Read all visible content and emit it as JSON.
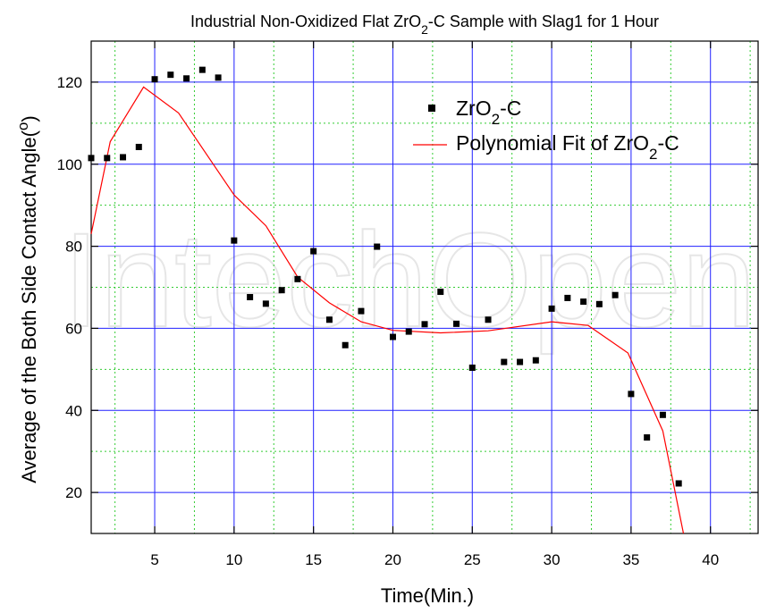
{
  "chart_data": {
    "type": "scatter",
    "title": {
      "prefix": "Industrial Non-Oxidized Flat  ZrO",
      "sub": "2",
      "suffix": "-C Sample with Slag1 for 1 Hour"
    },
    "xlabel": "Time(Min.)",
    "ylabel": {
      "main": "Average of the Both Side Contact Angle(",
      "sup": "o",
      "close": ")"
    },
    "xlim": [
      1,
      43
    ],
    "ylim": [
      10,
      130
    ],
    "xticks": [
      5,
      10,
      15,
      20,
      25,
      30,
      35,
      40
    ],
    "yticks": [
      20,
      40,
      60,
      80,
      100,
      120
    ],
    "grid": true,
    "legend_position": "top-right",
    "watermark": "IntechOpen",
    "series": [
      {
        "name": {
          "prefix": "ZrO",
          "sub": "2",
          "suffix": "-C"
        },
        "kind": "scatter",
        "color": "#000000",
        "x": [
          1,
          2,
          3,
          4,
          5,
          6,
          7,
          8,
          9,
          10,
          11,
          12,
          13,
          14,
          15,
          16,
          17,
          18,
          19,
          20,
          21,
          22,
          23,
          24,
          25,
          26,
          27,
          28,
          29,
          30,
          31,
          32,
          33,
          34,
          35,
          36,
          37,
          38
        ],
        "y": [
          101.5,
          101.5,
          101.7,
          104.2,
          120.7,
          121.8,
          120.9,
          123,
          121.1,
          81.4,
          67.6,
          66,
          69.3,
          72,
          78.8,
          62.1,
          55.9,
          64.2,
          79.9,
          57.9,
          59.2,
          61,
          68.9,
          61.1,
          50.4,
          62.1,
          51.8,
          51.8,
          52.2,
          64.8,
          67.4,
          66.5,
          65.9,
          68.1,
          44,
          33.4,
          38.9,
          22.2
        ]
      },
      {
        "name": {
          "prefix": "Polynomial Fit of ZrO",
          "sub": "2",
          "suffix": "-C"
        },
        "kind": "line",
        "color": "#ff0000",
        "x": [
          1,
          2.2,
          4.3,
          6.5,
          10,
          12,
          14,
          16,
          18,
          20,
          23,
          26,
          30,
          32.3,
          34.8,
          37,
          38.3
        ],
        "y": [
          83,
          105.5,
          118.8,
          112.5,
          92.5,
          85,
          72.5,
          66.2,
          61.6,
          59.5,
          58.9,
          59.4,
          61.6,
          60.7,
          54,
          35,
          10
        ]
      }
    ],
    "colors": {
      "major_grid": "#2020ff",
      "minor_grid": "#33cc33",
      "fit_line": "#ff0000",
      "points": "#000000"
    }
  }
}
